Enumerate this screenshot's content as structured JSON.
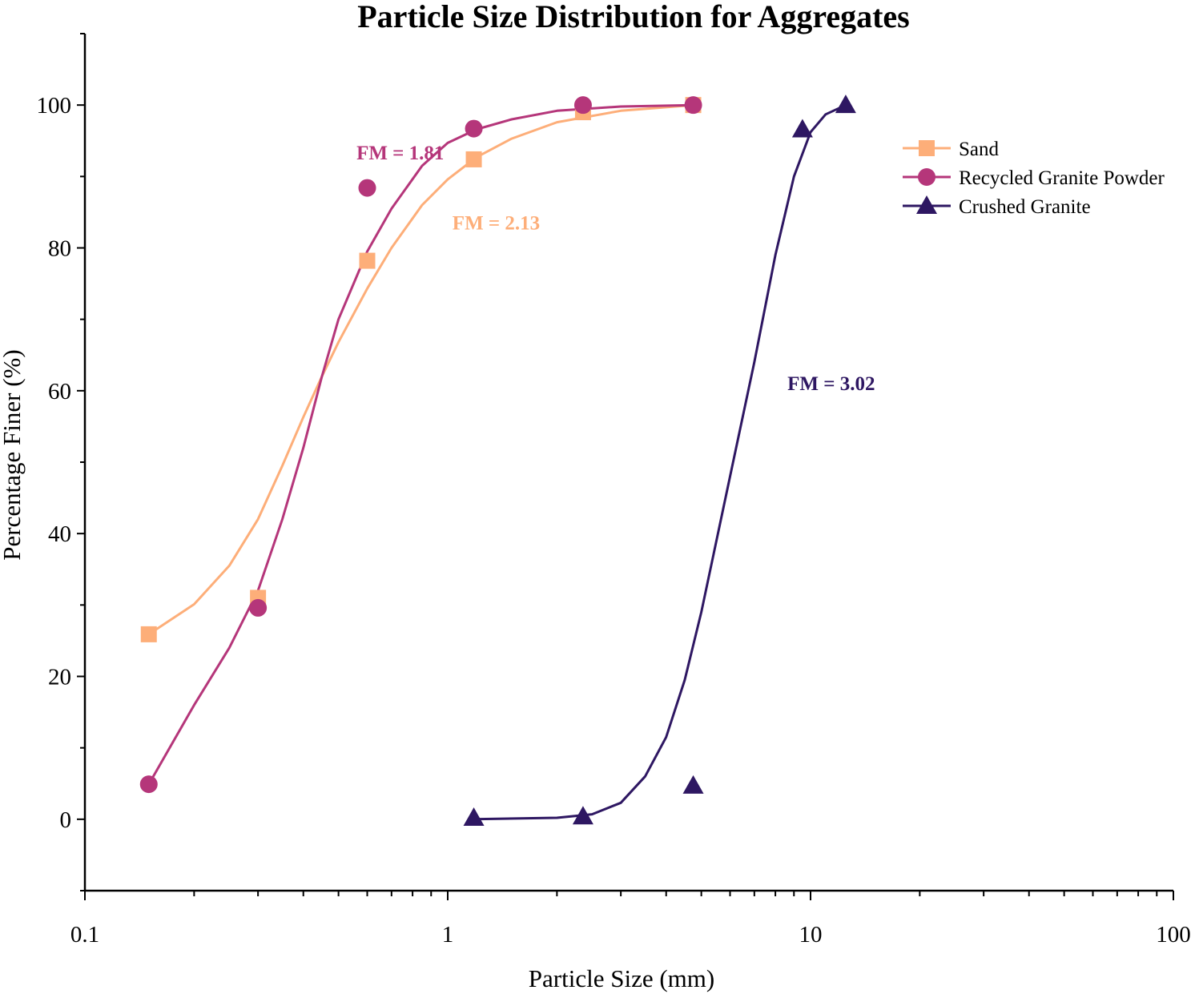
{
  "chart_data": {
    "type": "scatter",
    "title": "Particle Size Distribution for Aggregates",
    "xlabel": "Particle Size (mm)",
    "ylabel": "Percentage Finer (%)",
    "xscale": "log",
    "xlim": [
      0.1,
      100
    ],
    "ylim": [
      -10,
      110
    ],
    "xticks": [
      0.1,
      1,
      10,
      100
    ],
    "xtick_labels": [
      "0.1",
      "1",
      "10",
      "100"
    ],
    "yticks": [
      0,
      20,
      40,
      60,
      80,
      100
    ],
    "ytick_labels": [
      "0",
      "20",
      "40",
      "60",
      "80",
      "100"
    ],
    "grid": false,
    "legend_position": "top-right",
    "series": [
      {
        "name": "Sand",
        "color": "#FDAE79",
        "marker": "square",
        "points": [
          [
            0.15,
            25.9
          ],
          [
            0.3,
            31.0
          ],
          [
            0.6,
            78.2
          ],
          [
            1.18,
            92.4
          ],
          [
            2.36,
            99.0
          ],
          [
            4.75,
            100.0
          ]
        ],
        "fit_curve": [
          [
            0.15,
            25.9
          ],
          [
            0.2,
            30.1
          ],
          [
            0.25,
            35.5
          ],
          [
            0.3,
            42.0
          ],
          [
            0.35,
            49.5
          ],
          [
            0.4,
            56.3
          ],
          [
            0.45,
            62.0
          ],
          [
            0.5,
            66.8
          ],
          [
            0.6,
            74.3
          ],
          [
            0.7,
            80.0
          ],
          [
            0.85,
            86.0
          ],
          [
            1.0,
            89.6
          ],
          [
            1.2,
            92.7
          ],
          [
            1.5,
            95.3
          ],
          [
            2.0,
            97.6
          ],
          [
            3.0,
            99.2
          ],
          [
            4.75,
            100.0
          ]
        ]
      },
      {
        "name": "Recycled Granite Powder",
        "color": "#B5367A",
        "marker": "circle",
        "points": [
          [
            0.15,
            4.9
          ],
          [
            0.3,
            29.6
          ],
          [
            0.6,
            88.4
          ],
          [
            1.18,
            96.7
          ],
          [
            2.36,
            100.0
          ],
          [
            4.75,
            100.0
          ]
        ],
        "fit_curve": [
          [
            0.15,
            4.9
          ],
          [
            0.2,
            16.0
          ],
          [
            0.25,
            24.0
          ],
          [
            0.3,
            32.0
          ],
          [
            0.35,
            42.0
          ],
          [
            0.4,
            52.0
          ],
          [
            0.45,
            62.0
          ],
          [
            0.5,
            70.0
          ],
          [
            0.6,
            79.5
          ],
          [
            0.7,
            85.5
          ],
          [
            0.85,
            91.5
          ],
          [
            1.0,
            94.7
          ],
          [
            1.2,
            96.6
          ],
          [
            1.5,
            98.0
          ],
          [
            2.0,
            99.2
          ],
          [
            3.0,
            99.8
          ],
          [
            4.75,
            100.0
          ]
        ]
      },
      {
        "name": "Crushed Granite",
        "color": "#2E1762",
        "marker": "triangle",
        "points": [
          [
            1.18,
            0.2
          ],
          [
            2.36,
            0.4
          ],
          [
            4.75,
            4.7
          ],
          [
            9.5,
            96.6
          ],
          [
            12.5,
            100.0
          ]
        ],
        "fit_curve": [
          [
            1.18,
            0.0
          ],
          [
            2.0,
            0.2
          ],
          [
            2.5,
            0.7
          ],
          [
            3.0,
            2.3
          ],
          [
            3.5,
            6.0
          ],
          [
            4.0,
            11.5
          ],
          [
            4.5,
            19.5
          ],
          [
            5.0,
            29.0
          ],
          [
            6.0,
            48.0
          ],
          [
            7.0,
            64.0
          ],
          [
            8.0,
            79.0
          ],
          [
            9.0,
            90.0
          ],
          [
            10.0,
            96.2
          ],
          [
            11.0,
            98.7
          ],
          [
            12.5,
            100.0
          ]
        ]
      }
    ],
    "annotations": [
      {
        "text": "FM = 1.81",
        "color": "#B5367A",
        "x": 0.74,
        "y": 92.4
      },
      {
        "text": "FM = 2.13",
        "color": "#FDAE79",
        "x": 1.36,
        "y": 82.6
      },
      {
        "text": "FM = 3.02",
        "color": "#2E1762",
        "x": 11.4,
        "y": 60.1
      }
    ]
  }
}
